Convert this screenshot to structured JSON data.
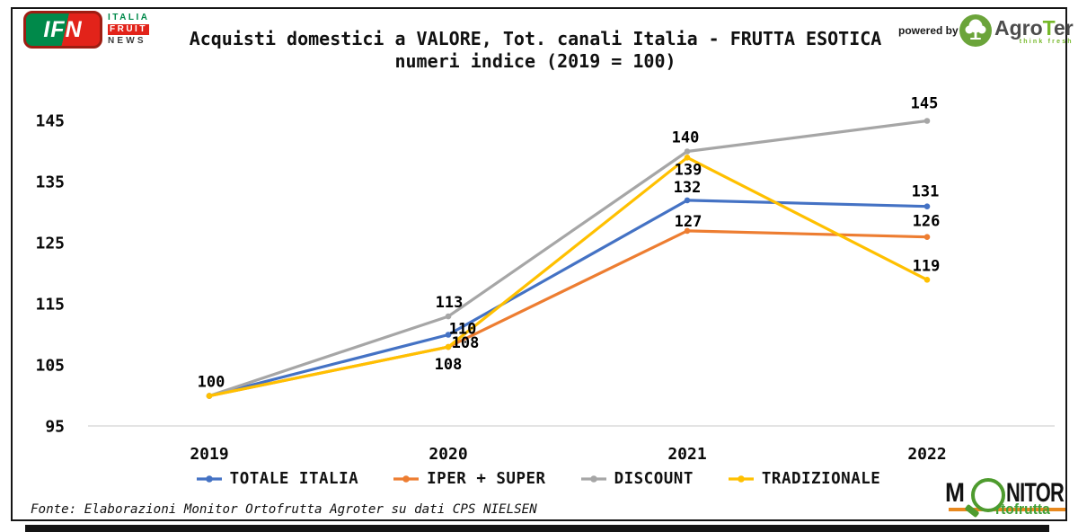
{
  "header": {
    "logo_ifn": {
      "abbr": "IFN",
      "word1": "ITALIA",
      "word2": "FRUIT",
      "word3": "NEWS"
    },
    "title_line1": "Acquisti domestici a VALORE, Tot. canali Italia - FRUTTA ESOTICA",
    "title_line2": "numeri indice (2019 = 100)",
    "powered_by": "powered by",
    "logo_agroter": {
      "part1": "Agro",
      "part2": "T",
      "part3": "er",
      "tagline": "think fresh"
    }
  },
  "chart_data": {
    "type": "line",
    "title": "Acquisti domestici a VALORE, Tot. canali Italia - FRUTTA ESOTICA",
    "subtitle": "numeri indice (2019 = 100)",
    "categories": [
      "2019",
      "2020",
      "2021",
      "2022"
    ],
    "series": [
      {
        "name": "TOTALE ITALIA",
        "color": "#4472C4",
        "values": [
          100,
          110,
          132,
          131
        ],
        "label_offsets": [
          null,
          [
            16,
            -7
          ],
          [
            0,
            -15
          ],
          [
            -2,
            -17
          ]
        ]
      },
      {
        "name": "IPER + SUPER",
        "color": "#ED7D31",
        "values": [
          100,
          108,
          127,
          126
        ],
        "label_offsets": [
          null,
          [
            19,
            -5
          ],
          [
            1,
            -11
          ],
          [
            -1,
            -18
          ]
        ]
      },
      {
        "name": "DISCOUNT",
        "color": "#A6A6A6",
        "values": [
          100,
          113,
          140,
          145
        ],
        "label_offsets": [
          [
            2,
            -16
          ],
          [
            1,
            -16
          ],
          [
            -2,
            -16
          ],
          [
            -3,
            -20
          ]
        ]
      },
      {
        "name": "TRADIZIONALE",
        "color": "#FFC000",
        "values": [
          100,
          108,
          139,
          119
        ],
        "label_offsets": [
          null,
          [
            0,
            19
          ],
          [
            1,
            13
          ],
          [
            -1,
            -16
          ]
        ]
      }
    ],
    "yticks": [
      95,
      105,
      115,
      125,
      135,
      145
    ],
    "ylim": [
      95,
      145
    ],
    "grid": false,
    "legend_position": "bottom",
    "axis_color": "#DBDBDB",
    "label_color": "#000000"
  },
  "footer": {
    "fonte": "Fonte: Elaborazioni Monitor Ortofrutta Agroter su dati CPS NIELSEN",
    "logo_monitor": {
      "m": "M",
      "nitor": "NITOR",
      "sub": "rtofrutta"
    }
  }
}
